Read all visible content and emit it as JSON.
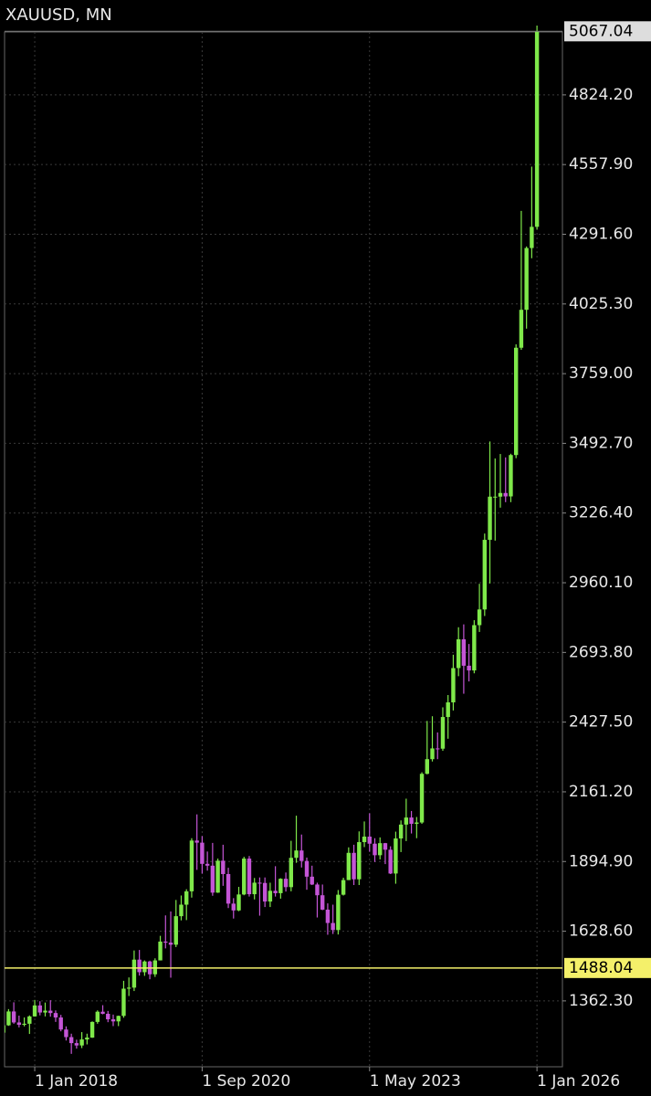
{
  "chart_data": {
    "type": "candlestick",
    "title": "XAUUSD, MN",
    "x": [
      "2017-07-01",
      "2017-08-01",
      "2017-09-01",
      "2017-10-01",
      "2017-11-01",
      "2017-12-01",
      "2018-01-01",
      "2018-02-01",
      "2018-03-01",
      "2018-04-01",
      "2018-05-01",
      "2018-06-01",
      "2018-07-01",
      "2018-08-01",
      "2018-09-01",
      "2018-10-01",
      "2018-11-01",
      "2018-12-01",
      "2019-01-01",
      "2019-02-01",
      "2019-03-01",
      "2019-04-01",
      "2019-05-01",
      "2019-06-01",
      "2019-07-01",
      "2019-08-01",
      "2019-09-01",
      "2019-10-01",
      "2019-11-01",
      "2019-12-01",
      "2020-01-01",
      "2020-02-01",
      "2020-03-01",
      "2020-04-01",
      "2020-05-01",
      "2020-06-01",
      "2020-07-01",
      "2020-08-01",
      "2020-09-01",
      "2020-10-01",
      "2020-11-01",
      "2020-12-01",
      "2021-01-01",
      "2021-02-01",
      "2021-03-01",
      "2021-04-01",
      "2021-05-01",
      "2021-06-01",
      "2021-07-01",
      "2021-08-01",
      "2021-09-01",
      "2021-10-01",
      "2021-11-01",
      "2021-12-01",
      "2022-01-01",
      "2022-02-01",
      "2022-03-01",
      "2022-04-01",
      "2022-05-01",
      "2022-06-01",
      "2022-07-01",
      "2022-08-01",
      "2022-09-01",
      "2022-10-01",
      "2022-11-01",
      "2022-12-01",
      "2023-01-01",
      "2023-02-01",
      "2023-03-01",
      "2023-04-01",
      "2023-05-01",
      "2023-06-01",
      "2023-07-01",
      "2023-08-01",
      "2023-09-01",
      "2023-10-01",
      "2023-11-01",
      "2023-12-01",
      "2024-01-01",
      "2024-02-01",
      "2024-03-01",
      "2024-04-01",
      "2024-05-01",
      "2024-06-01",
      "2024-07-01",
      "2024-08-01",
      "2024-09-01",
      "2024-10-01",
      "2024-11-01",
      "2024-12-01",
      "2025-01-01",
      "2025-02-01",
      "2025-03-01",
      "2025-04-01",
      "2025-05-01",
      "2025-06-01",
      "2025-07-01",
      "2025-08-01",
      "2025-09-01",
      "2025-10-01",
      "2025-11-01",
      "2025-12-01",
      "2026-01-01"
    ],
    "open": [
      1241,
      1269,
      1322,
      1280,
      1271,
      1275,
      1303,
      1345,
      1318,
      1325,
      1316,
      1299,
      1253,
      1224,
      1201,
      1192,
      1215,
      1222,
      1282,
      1321,
      1313,
      1292,
      1284,
      1305,
      1409,
      1413,
      1520,
      1472,
      1513,
      1464,
      1517,
      1589,
      1585,
      1577,
      1686,
      1730,
      1781,
      1975,
      1967,
      1886,
      1879,
      1776,
      1898,
      1847,
      1734,
      1708,
      1769,
      1906,
      1770,
      1814,
      1813,
      1742,
      1783,
      1774,
      1829,
      1797,
      1909,
      1937,
      1897,
      1837,
      1807,
      1766,
      1711,
      1660,
      1633,
      1768,
      1824,
      1928,
      1827,
      1969,
      1990,
      1963,
      1919,
      1965,
      1940,
      1849,
      1983,
      2036,
      2063,
      2039,
      2044,
      2230,
      2286,
      2327,
      2326,
      2447,
      2503,
      2634,
      2744,
      2643,
      2625,
      2798,
      2858,
      3124,
      3289,
      3289,
      3303,
      3290,
      3448,
      3858,
      4003,
      4239,
      4320
    ],
    "high": [
      1270,
      1331,
      1357,
      1306,
      1299,
      1307,
      1366,
      1361,
      1356,
      1365,
      1326,
      1309,
      1265,
      1237,
      1214,
      1243,
      1237,
      1284,
      1326,
      1346,
      1324,
      1310,
      1306,
      1439,
      1452,
      1555,
      1557,
      1517,
      1516,
      1525,
      1611,
      1689,
      1704,
      1748,
      1765,
      1789,
      1984,
      2075,
      1992,
      1933,
      1966,
      1906,
      1959,
      1871,
      1755,
      1798,
      1913,
      1916,
      1832,
      1834,
      1834,
      1814,
      1877,
      1831,
      1853,
      1974,
      2070,
      1998,
      1910,
      1879,
      1814,
      1807,
      1735,
      1730,
      1786,
      1833,
      1949,
      1959,
      2010,
      2048,
      2079,
      1984,
      1987,
      1966,
      1953,
      2009,
      2052,
      2135,
      2088,
      2065,
      2236,
      2432,
      2450,
      2388,
      2484,
      2531,
      2685,
      2790,
      2801,
      2726,
      2817,
      2956,
      3148,
      3500,
      3435,
      3452,
      3439,
      3453,
      3871,
      4381,
      4245,
      4550,
      5090
    ],
    "low": [
      1236,
      1267,
      1275,
      1261,
      1265,
      1236,
      1302,
      1307,
      1303,
      1302,
      1282,
      1246,
      1211,
      1160,
      1180,
      1182,
      1196,
      1221,
      1275,
      1311,
      1281,
      1266,
      1266,
      1298,
      1381,
      1400,
      1459,
      1458,
      1445,
      1454,
      1517,
      1563,
      1451,
      1568,
      1670,
      1671,
      1757,
      1863,
      1849,
      1860,
      1764,
      1775,
      1802,
      1717,
      1677,
      1705,
      1766,
      1761,
      1750,
      1688,
      1721,
      1721,
      1761,
      1753,
      1780,
      1781,
      1890,
      1872,
      1787,
      1805,
      1681,
      1709,
      1615,
      1618,
      1616,
      1765,
      1824,
      1805,
      1805,
      1950,
      1932,
      1893,
      1903,
      1885,
      1847,
      1810,
      1931,
      1973,
      2002,
      1984,
      2039,
      2228,
      2277,
      2286,
      2318,
      2364,
      2472,
      2603,
      2536,
      2583,
      2614,
      2772,
      2833,
      2957,
      3121,
      3247,
      3268,
      3268,
      3436,
      3850,
      3931,
      4200,
      4310
    ],
    "close": [
      1269,
      1322,
      1280,
      1271,
      1275,
      1303,
      1345,
      1318,
      1325,
      1316,
      1299,
      1253,
      1224,
      1201,
      1192,
      1215,
      1222,
      1282,
      1321,
      1313,
      1292,
      1284,
      1305,
      1409,
      1413,
      1520,
      1472,
      1513,
      1464,
      1517,
      1589,
      1585,
      1577,
      1686,
      1730,
      1781,
      1975,
      1967,
      1886,
      1879,
      1776,
      1898,
      1847,
      1734,
      1708,
      1769,
      1906,
      1770,
      1814,
      1813,
      1742,
      1783,
      1774,
      1829,
      1797,
      1909,
      1937,
      1897,
      1837,
      1807,
      1766,
      1711,
      1660,
      1633,
      1768,
      1824,
      1928,
      1827,
      1969,
      1990,
      1963,
      1919,
      1965,
      1940,
      1849,
      1983,
      2036,
      2063,
      2039,
      2044,
      2230,
      2286,
      2327,
      2326,
      2447,
      2503,
      2634,
      2744,
      2643,
      2625,
      2798,
      2858,
      3124,
      3289,
      3289,
      3303,
      3290,
      3448,
      3858,
      4003,
      4239,
      4320,
      5067.04
    ],
    "up_color": "#7fe84a",
    "down_color": "#c455d6",
    "xlim": [
      "2017-07-08",
      "2026-05-27"
    ],
    "xticks": [
      {
        "value": "2018-01-01",
        "label": "1 Jan 2018"
      },
      {
        "value": "2020-09-01",
        "label": "1 Sep 2020"
      },
      {
        "value": "2023-05-01",
        "label": "1 May 2023"
      },
      {
        "value": "2026-01-01",
        "label": "1 Jan 2026"
      }
    ],
    "ylim": [
      1110.6,
      5089
    ],
    "yticks": [
      {
        "value": 1362.3,
        "label": "1362.30"
      },
      {
        "value": 1628.6,
        "label": "1628.60"
      },
      {
        "value": 1894.9,
        "label": "1894.90"
      },
      {
        "value": 2161.2,
        "label": "2161.20"
      },
      {
        "value": 2427.5,
        "label": "2427.50"
      },
      {
        "value": 2693.8,
        "label": "2693.80"
      },
      {
        "value": 2960.1,
        "label": "2960.10"
      },
      {
        "value": 3226.4,
        "label": "3226.40"
      },
      {
        "value": 3492.7,
        "label": "3492.70"
      },
      {
        "value": 3759,
        "label": "3759.00"
      },
      {
        "value": 4025.3,
        "label": "4025.30"
      },
      {
        "value": 4291.6,
        "label": "4291.60"
      },
      {
        "value": 4557.9,
        "label": "4557.90"
      },
      {
        "value": 4824.2,
        "label": "4824.20"
      }
    ],
    "grid": true,
    "hline": {
      "value": 1488.04,
      "color": "#f4f06a"
    },
    "current_price": 5067.04
  }
}
